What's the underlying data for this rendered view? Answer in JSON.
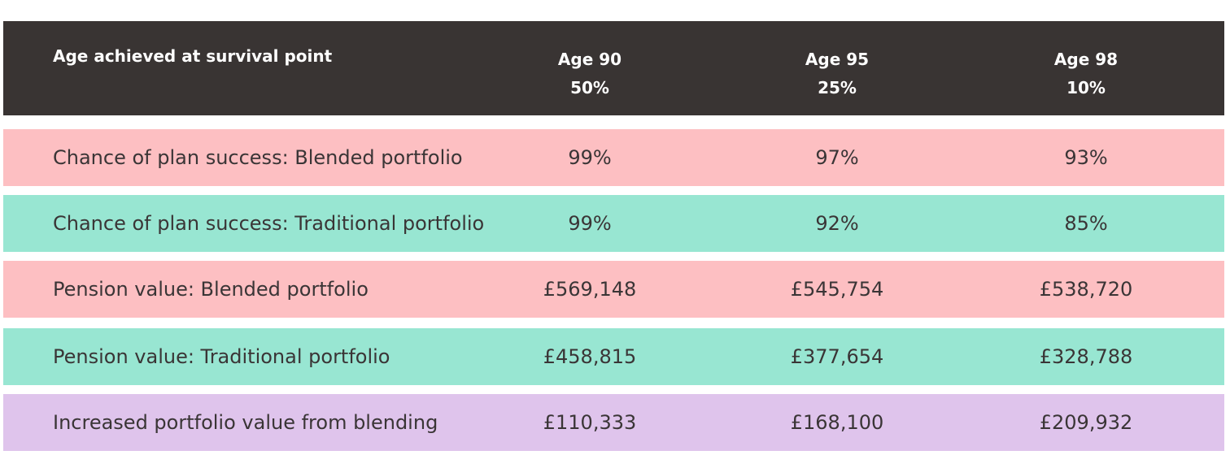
{
  "chart_data": {
    "type": "table",
    "header": {
      "label": "Age achieved at survival point",
      "columns": [
        {
          "age": "Age 90",
          "survival": "50%"
        },
        {
          "age": "Age 95",
          "survival": "25%"
        },
        {
          "age": "Age 98",
          "survival": "10%"
        }
      ]
    },
    "rows": [
      {
        "label": "Chance of plan success: Blended portfolio",
        "values": [
          "99%",
          "97%",
          "93%"
        ],
        "color": "#fdbfc2"
      },
      {
        "label": "Chance of plan success: Traditional portfolio",
        "values": [
          "99%",
          "92%",
          "85%"
        ],
        "color": "#98e6d2"
      },
      {
        "label": "Pension value: Blended portfolio",
        "values": [
          "£569,148",
          "£545,754",
          "£538,720"
        ],
        "color": "#fdbfc2"
      },
      {
        "label": "Pension value: Traditional portfolio",
        "values": [
          "£458,815",
          "£377,654",
          "£328,788"
        ],
        "color": "#98e6d2"
      },
      {
        "label": "Increased portfolio value from blending",
        "values": [
          "£110,333",
          "£168,100",
          "£209,932"
        ],
        "color": "#dfc4ec"
      }
    ]
  }
}
